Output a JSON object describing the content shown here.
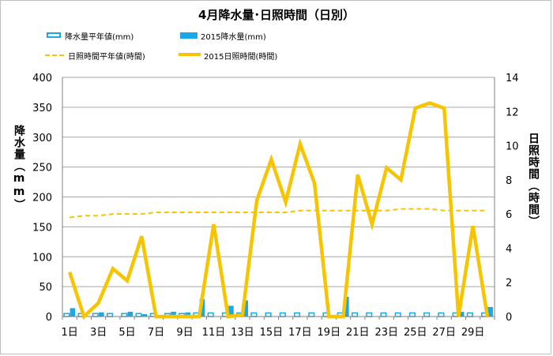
{
  "chart_data": {
    "type": "bar+line",
    "title": "4月降水量･日照時間（日別）",
    "ylabel_left": "降水量（mm）",
    "ylabel_right": "日照時間（時間）",
    "ylim_left": [
      0,
      400
    ],
    "ylim_right": [
      0,
      14
    ],
    "yticks_left": [
      0,
      50,
      100,
      150,
      200,
      250,
      300,
      350,
      400
    ],
    "yticks_right": [
      0,
      2,
      4,
      6,
      8,
      10,
      12,
      14
    ],
    "x": [
      1,
      2,
      3,
      4,
      5,
      6,
      7,
      8,
      9,
      10,
      11,
      12,
      13,
      14,
      15,
      16,
      17,
      18,
      19,
      20,
      21,
      22,
      23,
      24,
      25,
      26,
      27,
      28,
      29,
      30
    ],
    "xtick_labels": [
      "1日",
      "3日",
      "5日",
      "7日",
      "9日",
      "11日",
      "13日",
      "15日",
      "17日",
      "19日",
      "21日",
      "23日",
      "25日",
      "27日",
      "29日"
    ],
    "legend": {
      "precip_normal": "降水量平年値(mm)",
      "precip_2015": "2015降水量(mm)",
      "sun_normal": "日照時間平年値(時間)",
      "sun_2015": "2015日照時間(時間)"
    },
    "series": [
      {
        "name": "降水量平年値(mm)",
        "axis": "left",
        "kind": "bar-outline",
        "values": [
          5,
          5,
          5,
          5,
          5,
          5,
          5,
          5,
          5,
          6,
          6,
          6,
          6,
          6,
          6,
          6,
          6,
          6,
          6,
          6,
          6,
          6,
          6,
          6,
          6,
          6,
          6,
          6,
          6,
          6
        ]
      },
      {
        "name": "2015降水量(mm)",
        "axis": "left",
        "kind": "bar",
        "values": [
          14,
          0,
          7,
          0,
          8,
          4,
          0,
          8,
          7,
          29,
          0,
          18,
          27,
          0,
          0,
          0,
          0,
          0,
          0,
          33,
          0,
          0,
          0,
          0,
          0,
          0,
          0,
          8,
          0,
          16
        ]
      },
      {
        "name": "日照時間平年値(時間)",
        "axis": "right",
        "kind": "line-dashed",
        "values": [
          5.8,
          5.9,
          5.9,
          6.0,
          6.0,
          6.0,
          6.1,
          6.1,
          6.1,
          6.1,
          6.1,
          6.1,
          6.1,
          6.1,
          6.1,
          6.1,
          6.2,
          6.2,
          6.2,
          6.2,
          6.2,
          6.2,
          6.2,
          6.3,
          6.3,
          6.3,
          6.2,
          6.2,
          6.2,
          6.2
        ]
      },
      {
        "name": "2015日照時間(時間)",
        "axis": "right",
        "kind": "line",
        "values": [
          2.6,
          0.0,
          0.8,
          2.8,
          2.1,
          4.7,
          0.0,
          0.0,
          0.0,
          0.0,
          5.4,
          0.0,
          0.1,
          6.8,
          9.2,
          6.7,
          10.1,
          7.8,
          0.0,
          0.0,
          8.3,
          5.4,
          8.7,
          8.0,
          12.2,
          12.5,
          12.2,
          0.0,
          5.3,
          0.0
        ]
      }
    ],
    "colors": {
      "precip_normal": "#1ca7e6",
      "precip_2015": "#1ca7e6",
      "sun_normal": "#f7c400",
      "sun_2015": "#f7c400",
      "grid": "#a6a6a6"
    },
    "grid": true
  }
}
